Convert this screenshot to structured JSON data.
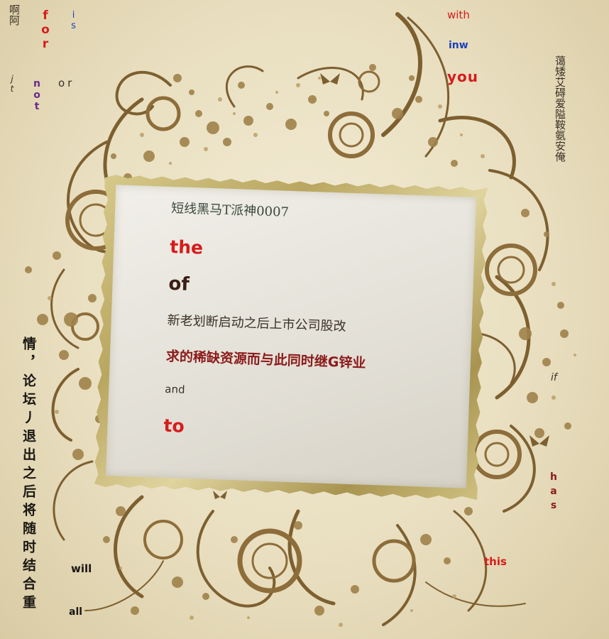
{
  "colors": {
    "background": "#ece3c8",
    "ornament": "#8a6a38",
    "red": "#d61c1c",
    "dark_red": "#8b1a1a",
    "blue": "#1a3fbf",
    "purple": "#6a2a8a",
    "dark_text": "#3a3126"
  },
  "card": {
    "line1": "短线黑马T派神0007",
    "line2": "the",
    "line3": "of",
    "line4": "新老划断启动之后上市公司股改",
    "line5": "求的稀缺资源而与此同时继G锌业",
    "line6": "and",
    "line7": "to"
  },
  "scatter": {
    "aa": "啊阿",
    "for": "for",
    "is": "is",
    "jt": "jt",
    "not": "not",
    "or": "or",
    "with": "with",
    "inw": "inw",
    "you": "you",
    "right_column": "蔼矮艾碍爱隘鞍氨安俺",
    "left_column": "情，论坛丿退出之后将随时结合重",
    "if": "if",
    "has": "has",
    "this": "this",
    "will": "will",
    "all": "all"
  }
}
